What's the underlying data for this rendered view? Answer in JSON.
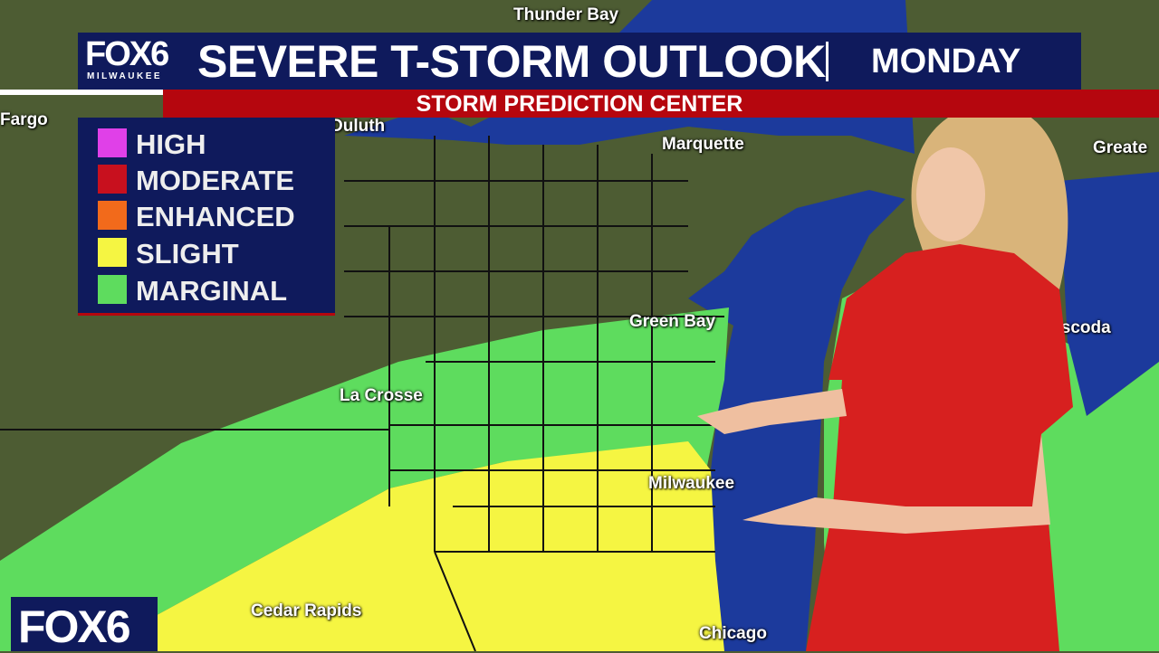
{
  "header": {
    "logo": "FOX6",
    "logo_sub": "MILWAUKEE",
    "title": "SEVERE T-STORM OUTLOOK",
    "day": "MONDAY",
    "subtitle": "STORM PREDICTION CENTER"
  },
  "legend": [
    {
      "label": "HIGH",
      "color": "#e040e8"
    },
    {
      "label": "MODERATE",
      "color": "#c8101e"
    },
    {
      "label": "ENHANCED",
      "color": "#f26a1b"
    },
    {
      "label": "SLIGHT",
      "color": "#f5f542"
    },
    {
      "label": "MARGINAL",
      "color": "#5edc5e"
    }
  ],
  "cities": {
    "thunder_bay": "Thunder Bay",
    "fargo": "Fargo",
    "duluth": "Duluth",
    "marquette": "Marquette",
    "greater": "Greate",
    "green_bay": "Green Bay",
    "oscoda": "Oscoda",
    "la_crosse": "La Crosse",
    "milwaukee": "Milwaukee",
    "cedar_rapids": "Cedar Rapids",
    "chicago": "Chicago"
  },
  "bug": "FOX6",
  "colors": {
    "land": "#4d5c33",
    "water": "#1c3a9c",
    "banner": "#0f1a5c",
    "accent": "#b5060e"
  }
}
